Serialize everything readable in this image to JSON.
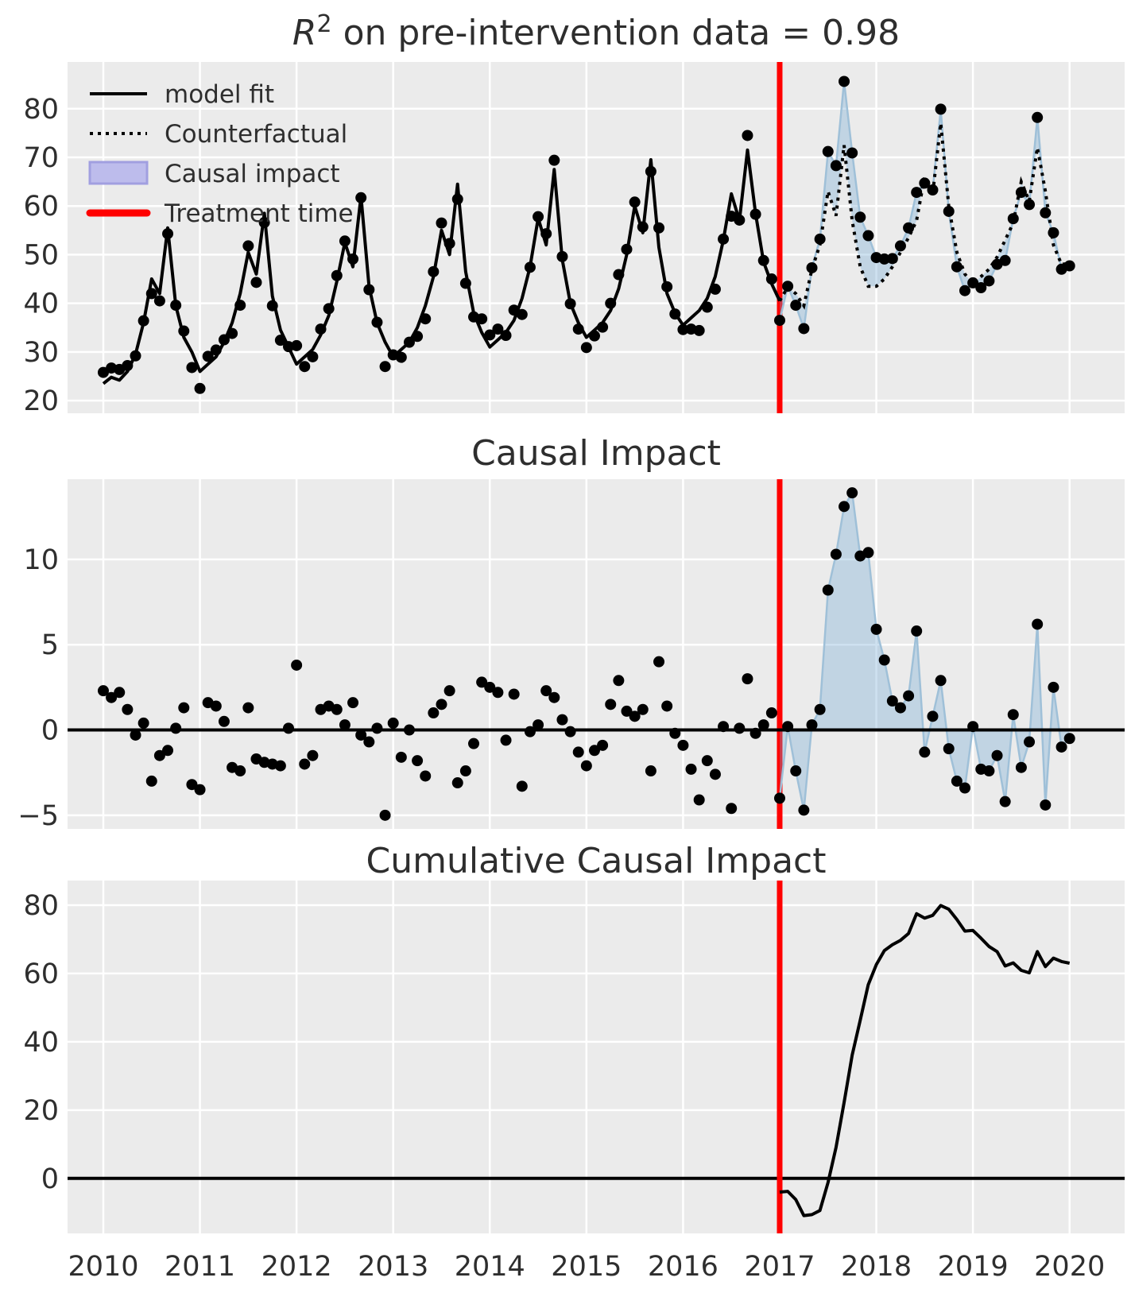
{
  "titles": {
    "top": "R² on pre-intervention data = 0.98",
    "middle": "Causal Impact",
    "bottom": "Cumulative Causal Impact"
  },
  "legend": {
    "items": [
      {
        "label": "model fit",
        "type": "line-solid"
      },
      {
        "label": "Counterfactual",
        "type": "line-dotted"
      },
      {
        "label": "Causal impact",
        "type": "patch"
      },
      {
        "label": "Treatment time",
        "type": "line-red"
      }
    ]
  },
  "colors": {
    "background": "#ffffff",
    "panel_background": "#ebebeb",
    "grid": "#ffffff",
    "text": "#2e2e2e",
    "series_black": "#000000",
    "treatment_red": "#ff0000",
    "impact_fill": "#6fa8d2",
    "impact_fill_opacity": 0.34,
    "post_observed_line": "#9fc0d8",
    "legend_patch_fill": "#bdbcec",
    "legend_patch_edge": "#a19fe0"
  },
  "chart_data": {
    "type": "line",
    "x_unit": "monthly, decimal years",
    "x_start": 2010.0,
    "x_step": 0.0833333,
    "n_points": 121,
    "treatment_time": 2017.0,
    "xlim": [
      2009.63,
      2020.57
    ],
    "xticks": [
      2010,
      2011,
      2012,
      2013,
      2014,
      2015,
      2016,
      2017,
      2018,
      2019,
      2020
    ],
    "panels": [
      {
        "title": "R² on pre-intervention data = 0.98",
        "ylim": [
          17.4,
          89.6
        ],
        "yticks": [
          20,
          30,
          40,
          50,
          60,
          70,
          80
        ],
        "grid": true
      },
      {
        "title": "Causal Impact",
        "ylim": [
          -5.8,
          14.7
        ],
        "yticks": [
          -5,
          0,
          5,
          10
        ],
        "grid": true,
        "zero_line": true
      },
      {
        "title": "Cumulative Causal Impact",
        "ylim": [
          -16.1,
          87.2
        ],
        "yticks": [
          0,
          20,
          40,
          60,
          80
        ],
        "grid": true,
        "zero_line": true
      }
    ],
    "series": [
      {
        "name": "observed",
        "values": [
          25.8,
          26.7,
          26.4,
          27.2,
          29.2,
          36.4,
          42.0,
          40.5,
          54.3,
          39.6,
          34.3,
          26.8,
          22.5,
          29.1,
          30.4,
          32.5,
          33.8,
          39.6,
          51.8,
          44.3,
          56.6,
          39.5,
          32.4,
          31.1,
          31.3,
          27.0,
          29.0,
          34.7,
          38.9,
          45.7,
          52.8,
          49.1,
          61.7,
          42.8,
          36.1,
          27.0,
          29.4,
          28.9,
          32.0,
          33.2,
          36.8,
          46.5,
          56.5,
          52.3,
          61.4,
          44.1,
          37.2,
          36.8,
          33.5,
          34.7,
          33.4,
          38.6,
          37.7,
          47.4,
          57.8,
          54.3,
          69.4,
          49.6,
          39.9,
          34.7,
          30.9,
          33.3,
          35.1,
          40.0,
          45.9,
          51.1,
          60.8,
          55.7,
          67.1,
          55.5,
          43.4,
          37.8,
          34.6,
          34.7,
          34.4,
          39.2,
          42.9,
          53.2,
          57.9,
          57.1,
          74.5,
          58.3,
          48.8,
          45.0,
          36.5,
          43.5,
          39.6,
          34.8,
          47.3,
          53.2,
          71.2,
          68.3,
          85.6,
          70.9,
          57.7,
          53.9,
          49.4,
          49.1,
          49.2,
          51.8,
          55.5,
          62.8,
          64.7,
          63.3,
          79.9,
          58.9,
          47.5,
          42.6,
          44.2,
          43.2,
          44.6,
          48.0,
          48.8,
          57.4,
          62.8,
          60.3,
          78.2,
          58.6,
          54.5,
          47.0,
          47.7
        ]
      },
      {
        "name": "model_fit_and_counterfactual",
        "values": [
          23.5,
          24.8,
          24.2,
          26.0,
          29.5,
          36.0,
          45.0,
          42.0,
          55.5,
          39.5,
          33.0,
          30.0,
          26.0,
          27.5,
          29.0,
          32.0,
          36.0,
          42.0,
          50.5,
          46.0,
          58.5,
          41.5,
          34.5,
          31.0,
          27.5,
          29.0,
          30.5,
          33.5,
          37.5,
          44.5,
          52.5,
          47.5,
          62.0,
          43.5,
          36.0,
          32.0,
          29.0,
          30.5,
          32.0,
          35.0,
          39.5,
          45.5,
          55.0,
          50.0,
          64.5,
          46.5,
          38.0,
          34.0,
          31.0,
          32.5,
          34.0,
          36.5,
          41.0,
          47.5,
          57.5,
          52.0,
          67.5,
          49.0,
          40.0,
          36.0,
          33.0,
          34.5,
          36.0,
          38.5,
          43.0,
          50.0,
          60.0,
          54.5,
          69.5,
          51.5,
          42.0,
          38.0,
          35.5,
          37.0,
          38.5,
          41.0,
          45.5,
          53.0,
          62.5,
          57.0,
          71.5,
          58.5,
          48.5,
          44.0,
          40.5,
          43.3,
          42.0,
          39.5,
          47.0,
          52.0,
          63.0,
          58.0,
          72.5,
          57.0,
          47.5,
          43.5,
          43.5,
          45.0,
          47.5,
          50.5,
          53.5,
          57.0,
          66.0,
          62.5,
          77.0,
          60.0,
          50.5,
          46.0,
          44.0,
          45.5,
          47.0,
          49.5,
          53.0,
          56.5,
          65.0,
          61.0,
          72.0,
          63.0,
          52.0,
          48.0,
          48.2
        ]
      }
    ],
    "derived": {
      "pointwise_effect": "observed - counterfactual (middle panel scatter)",
      "cumulative_effect": "cumulative sum of pointwise effect after treatment_time (bottom panel line)"
    }
  }
}
